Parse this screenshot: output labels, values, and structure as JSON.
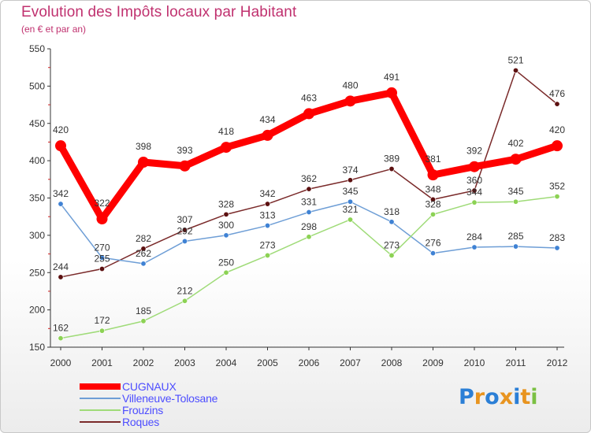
{
  "title": "Evolution des Impôts locaux par Habitant",
  "subtitle": "(en € et par an)",
  "logo": {
    "letters": [
      {
        "ch": "P",
        "color": "#2b7fd6"
      },
      {
        "ch": "r",
        "color": "#e8941f"
      },
      {
        "ch": "o",
        "color": "#2b7fd6"
      },
      {
        "ch": "x",
        "color": "#e8941f"
      },
      {
        "ch": "i",
        "color": "#2b7fd6"
      },
      {
        "ch": "t",
        "color": "#e8941f"
      },
      {
        "ch": "i",
        "color": "#7bc043"
      }
    ]
  },
  "chart_data": {
    "type": "line",
    "title": "Evolution des Impôts locaux par Habitant",
    "subtitle": "(en € et par an)",
    "xlabel": "",
    "ylabel": "",
    "categories": [
      "2000",
      "2001",
      "2002",
      "2003",
      "2004",
      "2005",
      "2006",
      "2007",
      "2008",
      "2009",
      "2010",
      "2011",
      "2012"
    ],
    "ylim": [
      150,
      550
    ],
    "yticks": [
      150,
      200,
      250,
      300,
      350,
      400,
      450,
      500,
      550
    ],
    "grid": false,
    "legend": "bottom-left",
    "series": [
      {
        "name": "CUGNAUX",
        "color": "#ff0000",
        "marker": "#ff0000",
        "width": 9,
        "markerR": 7,
        "values": [
          420,
          322,
          398,
          393,
          418,
          434,
          463,
          480,
          491,
          381,
          392,
          402,
          420
        ]
      },
      {
        "name": "Villeneuve-Tolosane",
        "color": "#6e9ed6",
        "marker": "#3f82d4",
        "width": 1.5,
        "markerR": 3.2,
        "values": [
          342,
          270,
          262,
          292,
          300,
          313,
          331,
          345,
          318,
          276,
          284,
          285,
          283
        ]
      },
      {
        "name": "Frouzins",
        "color": "#9fdb78",
        "marker": "#8cd254",
        "width": 1.5,
        "markerR": 3.2,
        "values": [
          162,
          172,
          185,
          212,
          250,
          273,
          298,
          321,
          273,
          328,
          344,
          345,
          352
        ]
      },
      {
        "name": "Roques",
        "color": "#7a2a2a",
        "marker": "#5c1010",
        "width": 1.5,
        "markerR": 3.2,
        "values": [
          244,
          255,
          282,
          307,
          328,
          342,
          362,
          374,
          389,
          348,
          360,
          521,
          476
        ]
      }
    ]
  }
}
